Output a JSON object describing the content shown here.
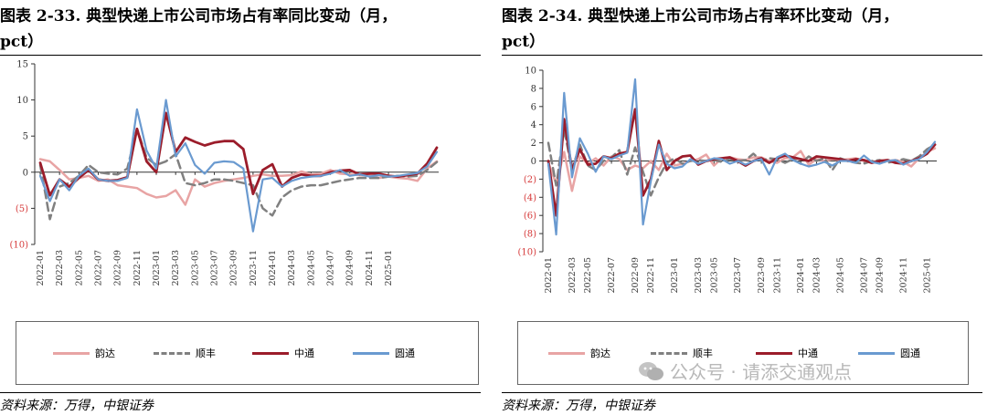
{
  "watermark": "公众号 · 请添交通观点",
  "chart_data": [
    {
      "id": "left",
      "type": "line",
      "title": "图表 2-33. 典型快递上市公司市场占有率同比变动（月，pct）",
      "title_line1": "图表 2-33. 典型快递上市公司市场占有率同比变动（月，",
      "title_line2": "pct）",
      "source": "资料来源：万得，中银证券",
      "xlabel": "",
      "ylabel": "",
      "ylim": [
        -10,
        15
      ],
      "yticks": [
        -10,
        -5,
        0,
        5,
        10,
        15
      ],
      "ytick_labels": [
        "(10)",
        "(5)",
        "0",
        "5",
        "10",
        "15"
      ],
      "x_count": 42,
      "xtick_labels": [
        "2022-01",
        "2022-03",
        "2022-05",
        "2022-07",
        "2022-09",
        "2022-11",
        "2023-01",
        "2023-03",
        "2023-05",
        "2023-07",
        "2023-09",
        "2023-11",
        "2024-01",
        "2024-03",
        "2024-05",
        "2024-07",
        "2024-09",
        "2024-11",
        "2025-01"
      ],
      "series": [
        {
          "name": "韵达",
          "color": "#e8a4a4",
          "dash": "",
          "width": 2.5,
          "values": [
            1.8,
            1.5,
            0.3,
            -1.0,
            -0.8,
            -0.5,
            -1.2,
            -1.0,
            -1.8,
            -2.0,
            -2.2,
            -3.0,
            -3.5,
            -3.3,
            -2.5,
            -4.5,
            -1.0,
            -2.0,
            -1.5,
            -1.2,
            -1.0,
            -0.8,
            -0.5,
            -0.3,
            -0.5,
            -0.5,
            -0.4,
            0.1,
            -0.3,
            -0.2,
            0.3,
            -0.2,
            -0.3,
            -0.4,
            -0.5,
            -0.8,
            -0.6,
            -0.8,
            -0.9,
            -1.2,
            0.5,
            1.5
          ]
        },
        {
          "name": "顺丰",
          "color": "#808080",
          "dash": "9,5",
          "width": 2.5,
          "values": [
            1.0,
            -6.5,
            -2.0,
            -1.5,
            -0.5,
            1.0,
            0.0,
            -0.2,
            -0.3,
            0.5,
            6.0,
            2.0,
            1.0,
            1.5,
            2.5,
            -1.5,
            -1.8,
            -1.5,
            -1.0,
            -1.0,
            -1.2,
            -1.5,
            -1.8,
            -5.0,
            -6.0,
            -3.5,
            -2.5,
            -2.0,
            -1.8,
            -1.8,
            -1.5,
            -1.2,
            -1.0,
            -0.8,
            -0.8,
            -0.8,
            -0.6,
            -0.5,
            -0.6,
            -0.5,
            0.3,
            1.4
          ]
        },
        {
          "name": "中通",
          "color": "#9b1c2a",
          "dash": "",
          "width": 2.8,
          "values": [
            1.3,
            -3.2,
            -1.0,
            -2.0,
            -0.8,
            0.3,
            -1.0,
            -1.2,
            -1.1,
            -0.7,
            6.0,
            1.5,
            0.0,
            8.2,
            2.8,
            4.8,
            4.2,
            3.7,
            4.1,
            4.3,
            4.3,
            3.2,
            -3.0,
            0.3,
            1.1,
            -2.0,
            -0.8,
            -0.3,
            -0.5,
            -0.5,
            0.0,
            0.2,
            0.3,
            -0.3,
            -0.2,
            -0.2,
            -0.5,
            -0.6,
            -0.4,
            -0.2,
            1.2,
            3.4
          ]
        },
        {
          "name": "圆通",
          "color": "#6a9ad0",
          "dash": "",
          "width": 2.2,
          "values": [
            -0.5,
            -4.0,
            -1.0,
            -2.5,
            -0.5,
            0.5,
            -1.0,
            -1.2,
            -1.2,
            -0.8,
            8.7,
            3.0,
            0.5,
            10.0,
            2.2,
            4.0,
            1.0,
            -0.2,
            1.3,
            1.5,
            1.4,
            0.5,
            -8.2,
            -1.0,
            -0.8,
            -2.0,
            -1.2,
            -0.8,
            -0.6,
            -0.5,
            -0.2,
            0.3,
            -0.5,
            -0.3,
            -0.6,
            -0.4,
            -0.6,
            -0.5,
            -0.3,
            -0.1,
            0.8,
            2.8
          ]
        }
      ]
    },
    {
      "id": "right",
      "type": "line",
      "title": "图表 2-34. 典型快递上市公司市场占有率环比变动（月，pct）",
      "title_line1": "图表 2-34. 典型快递上市公司市场占有率环比变动（月，",
      "title_line2": "pct）",
      "source": "资料来源：万得，中银证券",
      "xlabel": "",
      "ylabel": "",
      "ylim": [
        -10,
        10
      ],
      "yticks": [
        -10,
        -8,
        -6,
        -4,
        -2,
        0,
        2,
        4,
        6,
        8,
        10
      ],
      "ytick_labels": [
        "(10)",
        "(8)",
        "(6)",
        "(4)",
        "(2)",
        "0",
        "2",
        "4",
        "6",
        "8",
        "10"
      ],
      "x_count": 50,
      "xtick_labels": [
        "2022-01",
        "2022-03",
        "2022-05",
        "2022-07",
        "2022-09",
        "2022-11",
        "2023-01",
        "2023-03",
        "2023-05",
        "2023-07",
        "2023-09",
        "2023-11",
        "2024-01",
        "2024-03",
        "2024-05",
        "2024-07",
        "2024-09",
        "2024-11",
        "2025-01"
      ],
      "series": [
        {
          "name": "韵达",
          "color": "#e8a4a4",
          "dash": "",
          "width": 2.5,
          "values": [
            -0.2,
            -2.5,
            1.0,
            -3.3,
            0.5,
            -0.3,
            0.3,
            -0.5,
            0.5,
            0.2,
            -1.0,
            -0.5,
            -0.8,
            0.0,
            -1.0,
            0.8,
            -0.5,
            -0.3,
            0.0,
            0.2,
            0.7,
            -0.5,
            0.3,
            0.4,
            0.2,
            0.1,
            0.4,
            0.4,
            0.0,
            -0.2,
            0.3,
            0.4,
            1.1,
            -0.4,
            0.2,
            0.0,
            0.2,
            0.1,
            0.2,
            0.3,
            0.0,
            -0.2,
            0.1,
            0.0,
            0.1,
            -0.1,
            -0.6,
            0.3,
            1.0,
            1.4
          ]
        },
        {
          "name": "顺丰",
          "color": "#808080",
          "dash": "9,5",
          "width": 2.5,
          "values": [
            2.0,
            -2.7,
            3.5,
            -1.0,
            1.8,
            -0.5,
            -1.0,
            0.0,
            0.4,
            1.2,
            -1.5,
            1.5,
            -1.2,
            -3.8,
            -1.8,
            -0.2,
            0.3,
            -0.3,
            0.0,
            0.1,
            0.0,
            0.1,
            -0.1,
            0.2,
            0.0,
            0.1,
            0.8,
            0.0,
            0.3,
            0.2,
            -0.2,
            0.2,
            -0.3,
            0.5,
            0.0,
            0.3,
            -1.0,
            0.3,
            0.0,
            -0.2,
            -0.3,
            0.0,
            0.1,
            -0.2,
            0.0,
            0.2,
            0.0,
            0.5,
            1.3,
            1.8
          ]
        },
        {
          "name": "中通",
          "color": "#9b1c2a",
          "dash": "",
          "width": 2.8,
          "values": [
            0.0,
            -6.0,
            4.6,
            -1.0,
            1.3,
            -0.4,
            -0.3,
            0.5,
            0.3,
            0.8,
            1.0,
            5.7,
            -3.8,
            -2.0,
            2.2,
            -1.0,
            0.0,
            0.5,
            0.6,
            -0.4,
            0.0,
            0.2,
            0.3,
            0.4,
            0.0,
            -0.5,
            0.0,
            0.3,
            -0.2,
            0.3,
            0.6,
            0.4,
            0.2,
            0.0,
            0.5,
            0.4,
            0.3,
            0.2,
            0.0,
            0.2,
            0.1,
            -0.2,
            0.0,
            0.1,
            -0.2,
            -0.3,
            0.0,
            0.3,
            0.8,
            1.8
          ]
        },
        {
          "name": "圆通",
          "color": "#6a9ad0",
          "dash": "",
          "width": 2.2,
          "values": [
            -0.3,
            -8.1,
            7.5,
            -1.8,
            2.5,
            0.8,
            -1.2,
            0.5,
            0.2,
            0.6,
            0.9,
            9.0,
            -7.0,
            -2.2,
            1.8,
            -0.3,
            -0.8,
            -0.6,
            0.2,
            -0.3,
            0.0,
            0.3,
            0.2,
            -0.3,
            0.0,
            -0.4,
            0.0,
            0.2,
            -1.5,
            0.4,
            0.8,
            0.1,
            -0.3,
            -0.6,
            -0.4,
            -0.1,
            -0.5,
            0.0,
            0.0,
            -0.2,
            0.6,
            -0.1,
            -0.3,
            0.0,
            0.1,
            -0.4,
            0.0,
            0.2,
            1.0,
            2.1
          ]
        }
      ]
    }
  ]
}
